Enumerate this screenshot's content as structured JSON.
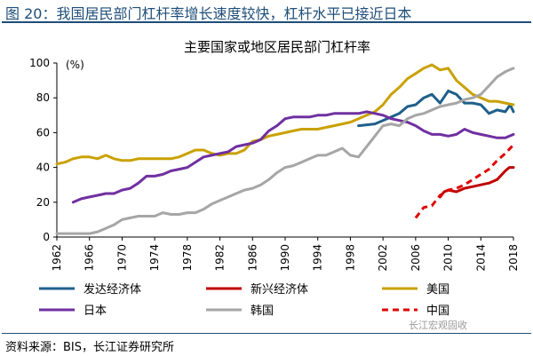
{
  "figure": {
    "title": "图 20：我国居民部门杠杆率增长速度较快，杠杆水平已接近日本",
    "source": "资料来源：BIS，长江证券研究所",
    "watermark": "长江宏观固收"
  },
  "chart_data": {
    "type": "line",
    "title": "主要国家或地区居民部门杠杆率",
    "ylabel": "(%)",
    "xlabel": "",
    "xlim": [
      1962,
      2018
    ],
    "ylim": [
      0,
      100
    ],
    "x_ticks": [
      "1962",
      "1966",
      "1970",
      "1974",
      "1978",
      "1982",
      "1986",
      "1990",
      "1994",
      "1998",
      "2002",
      "2006",
      "2010",
      "2014",
      "2018"
    ],
    "y_ticks": [
      "0",
      "20",
      "40",
      "60",
      "80",
      "100"
    ],
    "grid": false,
    "legend_position": "bottom",
    "series": [
      {
        "name": "发达经济体",
        "color": "#1f5f8b",
        "dash": false,
        "points": [
          [
            1999,
            64
          ],
          [
            2001,
            65
          ],
          [
            2002,
            67
          ],
          [
            2003,
            69
          ],
          [
            2004,
            71
          ],
          [
            2005,
            75
          ],
          [
            2006,
            76
          ],
          [
            2007,
            80
          ],
          [
            2008,
            82
          ],
          [
            2009,
            77
          ],
          [
            2010,
            84
          ],
          [
            2011,
            82
          ],
          [
            2012,
            77
          ],
          [
            2013,
            77
          ],
          [
            2014,
            76
          ],
          [
            2015,
            71
          ],
          [
            2016,
            73
          ],
          [
            2017,
            72
          ],
          [
            2017.6,
            76
          ],
          [
            2018,
            72
          ]
        ]
      },
      {
        "name": "新兴经济体",
        "color": "#c00000",
        "dash": false,
        "points": [
          [
            2009,
            23
          ],
          [
            2009.5,
            26
          ],
          [
            2010,
            27
          ],
          [
            2011,
            26
          ],
          [
            2012,
            28
          ],
          [
            2013,
            29
          ],
          [
            2014,
            30
          ],
          [
            2015,
            31
          ],
          [
            2016,
            33
          ],
          [
            2017,
            38
          ],
          [
            2017.5,
            40
          ],
          [
            2018,
            40
          ]
        ]
      },
      {
        "name": "美国",
        "color": "#c9a100",
        "dash": false,
        "points": [
          [
            1962,
            42
          ],
          [
            1963,
            43
          ],
          [
            1964,
            45
          ],
          [
            1965,
            46
          ],
          [
            1966,
            46
          ],
          [
            1967,
            45
          ],
          [
            1968,
            47
          ],
          [
            1969,
            45
          ],
          [
            1970,
            44
          ],
          [
            1971,
            44
          ],
          [
            1972,
            45
          ],
          [
            1973,
            45
          ],
          [
            1974,
            45
          ],
          [
            1975,
            45
          ],
          [
            1976,
            45
          ],
          [
            1977,
            46
          ],
          [
            1978,
            48
          ],
          [
            1979,
            50
          ],
          [
            1980,
            50
          ],
          [
            1981,
            48
          ],
          [
            1982,
            47
          ],
          [
            1983,
            48
          ],
          [
            1984,
            48
          ],
          [
            1985,
            50
          ],
          [
            1986,
            55
          ],
          [
            1987,
            56
          ],
          [
            1988,
            58
          ],
          [
            1989,
            59
          ],
          [
            1990,
            60
          ],
          [
            1991,
            61
          ],
          [
            1992,
            62
          ],
          [
            1993,
            62
          ],
          [
            1994,
            62
          ],
          [
            1995,
            63
          ],
          [
            1996,
            64
          ],
          [
            1997,
            65
          ],
          [
            1998,
            66
          ],
          [
            1999,
            68
          ],
          [
            2000,
            70
          ],
          [
            2001,
            72
          ],
          [
            2002,
            76
          ],
          [
            2003,
            82
          ],
          [
            2004,
            86
          ],
          [
            2005,
            91
          ],
          [
            2006,
            94
          ],
          [
            2007,
            97
          ],
          [
            2008,
            99
          ],
          [
            2009,
            96
          ],
          [
            2010,
            97
          ],
          [
            2011,
            90
          ],
          [
            2012,
            86
          ],
          [
            2013,
            82
          ],
          [
            2014,
            80
          ],
          [
            2015,
            78
          ],
          [
            2016,
            78
          ],
          [
            2017,
            77
          ],
          [
            2018,
            76
          ]
        ]
      },
      {
        "name": "日本",
        "color": "#7030a0",
        "dash": false,
        "points": [
          [
            1964,
            20
          ],
          [
            1965,
            22
          ],
          [
            1966,
            23
          ],
          [
            1967,
            24
          ],
          [
            1968,
            25
          ],
          [
            1969,
            25
          ],
          [
            1970,
            27
          ],
          [
            1971,
            28
          ],
          [
            1972,
            31
          ],
          [
            1973,
            35
          ],
          [
            1974,
            35
          ],
          [
            1975,
            36
          ],
          [
            1976,
            38
          ],
          [
            1977,
            39
          ],
          [
            1978,
            40
          ],
          [
            1979,
            43
          ],
          [
            1980,
            46
          ],
          [
            1981,
            47
          ],
          [
            1982,
            48
          ],
          [
            1983,
            49
          ],
          [
            1984,
            52
          ],
          [
            1985,
            53
          ],
          [
            1986,
            54
          ],
          [
            1987,
            56
          ],
          [
            1988,
            61
          ],
          [
            1989,
            64
          ],
          [
            1990,
            68
          ],
          [
            1991,
            69
          ],
          [
            1992,
            69
          ],
          [
            1993,
            69
          ],
          [
            1994,
            70
          ],
          [
            1995,
            70
          ],
          [
            1996,
            71
          ],
          [
            1997,
            71
          ],
          [
            1998,
            71
          ],
          [
            1999,
            71
          ],
          [
            2000,
            72
          ],
          [
            2001,
            71
          ],
          [
            2002,
            70
          ],
          [
            2003,
            68
          ],
          [
            2004,
            67
          ],
          [
            2005,
            66
          ],
          [
            2006,
            64
          ],
          [
            2007,
            61
          ],
          [
            2008,
            59
          ],
          [
            2009,
            59
          ],
          [
            2010,
            58
          ],
          [
            2011,
            59
          ],
          [
            2012,
            62
          ],
          [
            2013,
            60
          ],
          [
            2014,
            59
          ],
          [
            2015,
            58
          ],
          [
            2016,
            57
          ],
          [
            2017,
            57
          ],
          [
            2018,
            59
          ]
        ]
      },
      {
        "name": "韩国",
        "color": "#a6a6a6",
        "dash": false,
        "points": [
          [
            1962,
            2
          ],
          [
            1963,
            2
          ],
          [
            1964,
            2
          ],
          [
            1965,
            2
          ],
          [
            1966,
            2
          ],
          [
            1967,
            3
          ],
          [
            1968,
            5
          ],
          [
            1969,
            7
          ],
          [
            1970,
            10
          ],
          [
            1971,
            11
          ],
          [
            1972,
            12
          ],
          [
            1973,
            12
          ],
          [
            1974,
            12
          ],
          [
            1975,
            14
          ],
          [
            1976,
            13
          ],
          [
            1977,
            13
          ],
          [
            1978,
            14
          ],
          [
            1979,
            14
          ],
          [
            1980,
            16
          ],
          [
            1981,
            19
          ],
          [
            1982,
            21
          ],
          [
            1983,
            23
          ],
          [
            1984,
            25
          ],
          [
            1985,
            27
          ],
          [
            1986,
            28
          ],
          [
            1987,
            30
          ],
          [
            1988,
            33
          ],
          [
            1989,
            37
          ],
          [
            1990,
            40
          ],
          [
            1991,
            41
          ],
          [
            1992,
            43
          ],
          [
            1993,
            45
          ],
          [
            1994,
            47
          ],
          [
            1995,
            47
          ],
          [
            1996,
            49
          ],
          [
            1997,
            51
          ],
          [
            1998,
            47
          ],
          [
            1999,
            46
          ],
          [
            2000,
            52
          ],
          [
            2001,
            58
          ],
          [
            2002,
            64
          ],
          [
            2003,
            65
          ],
          [
            2004,
            64
          ],
          [
            2005,
            68
          ],
          [
            2006,
            70
          ],
          [
            2007,
            71
          ],
          [
            2008,
            73
          ],
          [
            2009,
            75
          ],
          [
            2010,
            76
          ],
          [
            2011,
            77
          ],
          [
            2012,
            79
          ],
          [
            2013,
            80
          ],
          [
            2014,
            82
          ],
          [
            2015,
            87
          ],
          [
            2016,
            92
          ],
          [
            2017,
            95
          ],
          [
            2018,
            97
          ]
        ]
      },
      {
        "name": "中国",
        "color": "#e00000",
        "dash": true,
        "points": [
          [
            2006,
            11
          ],
          [
            2007,
            17
          ],
          [
            2008,
            18
          ],
          [
            2009,
            24
          ],
          [
            2010,
            27
          ],
          [
            2011,
            28
          ],
          [
            2012,
            30
          ],
          [
            2013,
            33
          ],
          [
            2014,
            36
          ],
          [
            2015,
            39
          ],
          [
            2016,
            44
          ],
          [
            2017,
            48
          ],
          [
            2018,
            53
          ]
        ]
      }
    ]
  }
}
